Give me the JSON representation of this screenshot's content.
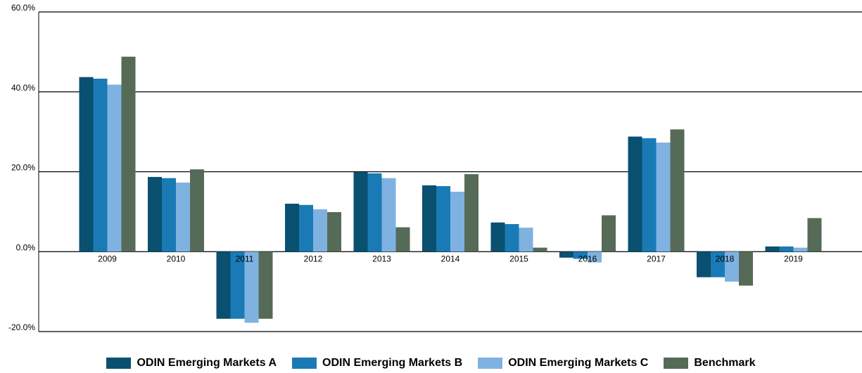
{
  "chart_data": {
    "type": "bar",
    "categories": [
      "2009",
      "2010",
      "2011",
      "2012",
      "2013",
      "2014",
      "2015",
      "2016",
      "2017",
      "2018",
      "2019"
    ],
    "series": [
      {
        "name": "ODIN Emerging Markets A",
        "color": "#0a5070",
        "values": [
          43.7,
          18.7,
          -16.8,
          12.0,
          19.9,
          16.6,
          7.3,
          -1.5,
          28.8,
          -6.4,
          1.3
        ]
      },
      {
        "name": "ODIN Emerging Markets B",
        "color": "#1a7ab5",
        "values": [
          43.3,
          18.4,
          -16.8,
          11.7,
          19.6,
          16.4,
          6.9,
          -1.8,
          28.4,
          -6.4,
          1.3
        ]
      },
      {
        "name": "ODIN Emerging Markets C",
        "color": "#7fb2e0",
        "values": [
          41.8,
          17.3,
          -17.8,
          10.6,
          18.4,
          15.0,
          6.0,
          -2.7,
          27.3,
          -7.5,
          1.0
        ]
      },
      {
        "name": "Benchmark",
        "color": "#566b57",
        "values": [
          48.8,
          20.6,
          -16.8,
          9.9,
          6.1,
          19.4,
          1.0,
          9.1,
          30.6,
          -8.5,
          8.4
        ]
      }
    ],
    "ylim": [
      -20,
      60
    ],
    "yticks": [
      {
        "value": -20,
        "label": "-20.0%"
      },
      {
        "value": 0,
        "label": "0.0%"
      },
      {
        "value": 20,
        "label": "20.0%"
      },
      {
        "value": 40,
        "label": "40.0%"
      },
      {
        "value": 60,
        "label": "60.0%"
      }
    ],
    "grid": true
  }
}
